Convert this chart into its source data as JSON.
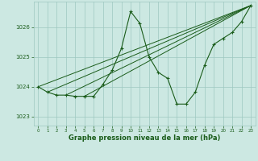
{
  "main_line": {
    "x": [
      0,
      1,
      2,
      3,
      4,
      5,
      6,
      7,
      8,
      9,
      10,
      11,
      12,
      13,
      14,
      15,
      16,
      17,
      18,
      19,
      20,
      21,
      22,
      23
    ],
    "y": [
      1024.0,
      1023.82,
      1023.72,
      1023.72,
      1023.68,
      1023.68,
      1023.68,
      1024.08,
      1024.55,
      1025.28,
      1026.52,
      1026.12,
      1025.0,
      1024.48,
      1024.28,
      1023.42,
      1023.42,
      1023.82,
      1024.72,
      1025.42,
      1025.62,
      1025.82,
      1026.18,
      1026.72
    ]
  },
  "trend_lines": [
    {
      "x": [
        0,
        23
      ],
      "y": [
        1024.0,
        1026.72
      ]
    },
    {
      "x": [
        1,
        23
      ],
      "y": [
        1023.82,
        1026.72
      ]
    },
    {
      "x": [
        3,
        23
      ],
      "y": [
        1023.72,
        1026.72
      ]
    },
    {
      "x": [
        5,
        23
      ],
      "y": [
        1023.68,
        1026.72
      ]
    }
  ],
  "line_color": "#1a5c1a",
  "bg_color": "#cce8e2",
  "grid_color": "#9dc8c0",
  "xlabel": "Graphe pression niveau de la mer (hPa)",
  "ylim": [
    1022.7,
    1026.85
  ],
  "xlim": [
    -0.5,
    23.5
  ],
  "yticks": [
    1023,
    1024,
    1025,
    1026
  ],
  "xticks": [
    0,
    1,
    2,
    3,
    4,
    5,
    6,
    7,
    8,
    9,
    10,
    11,
    12,
    13,
    14,
    15,
    16,
    17,
    18,
    19,
    20,
    21,
    22,
    23
  ]
}
